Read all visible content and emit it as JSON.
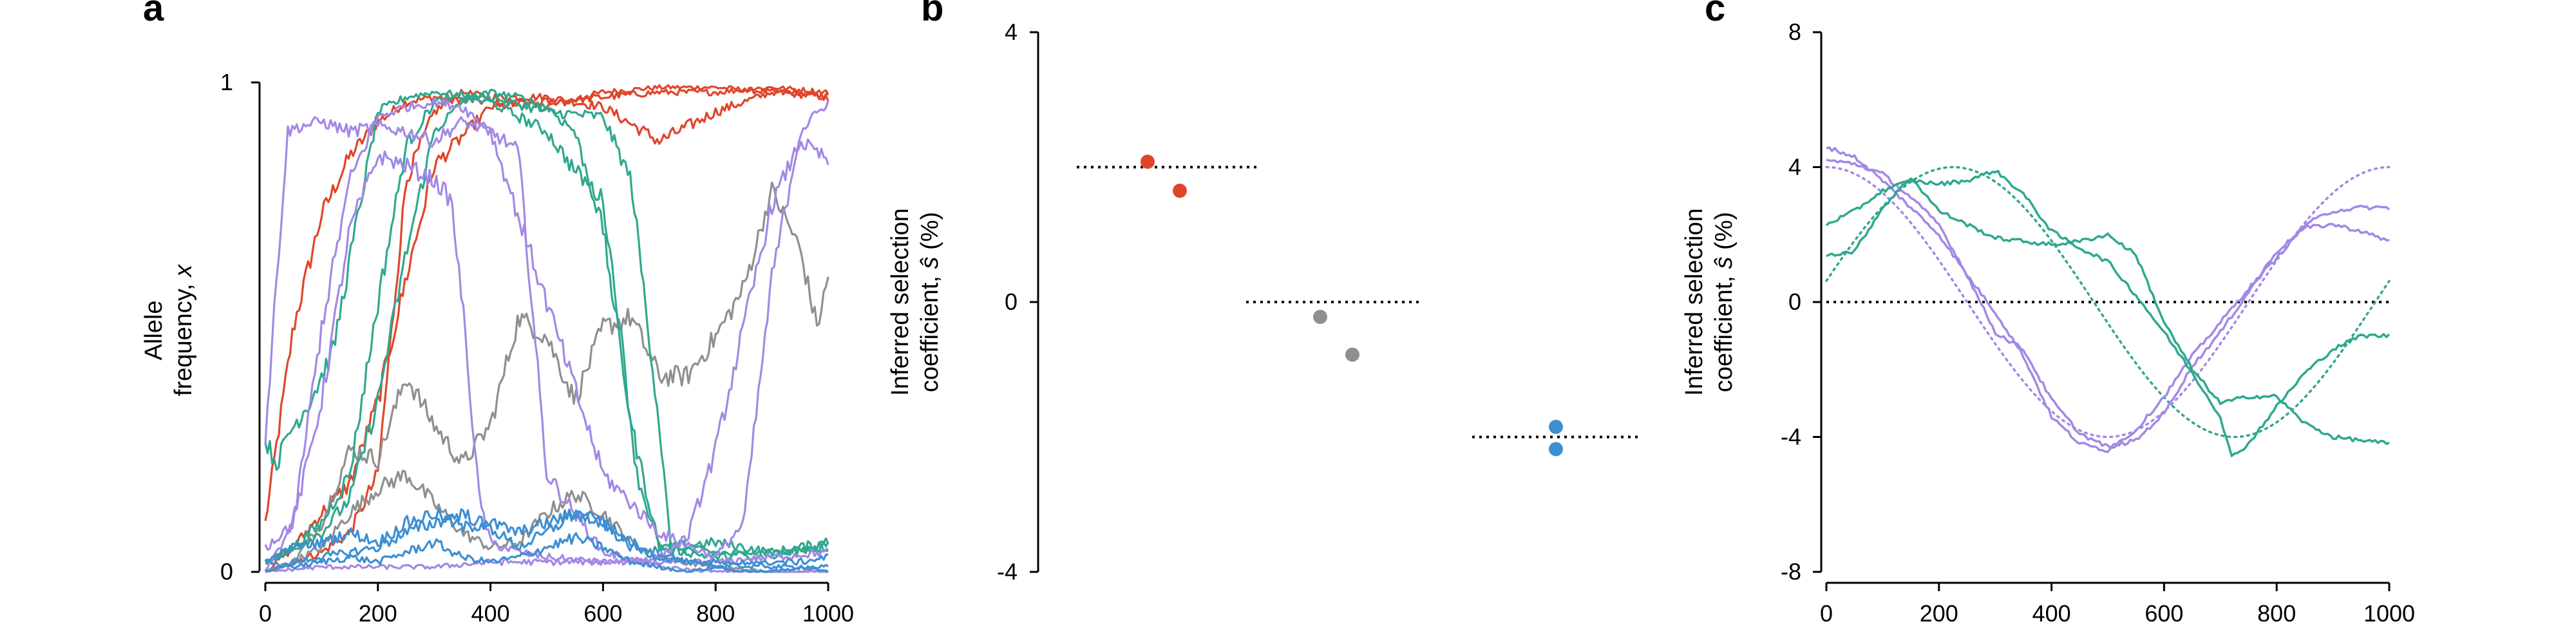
{
  "colors": {
    "red": "#e0452a",
    "gray": "#8f8f8f",
    "teal": "#2fa88f",
    "purple": "#a388e6",
    "blue": "#3d8fd2"
  },
  "chart_data": [
    {
      "panel": "a",
      "type": "line",
      "ylabel_line1": "Allele",
      "ylabel_line2": "frequency, ",
      "ylabel_symbol": "x",
      "xlim": [
        0,
        1000
      ],
      "ylim": [
        0,
        1
      ],
      "xticks": [
        0,
        200,
        400,
        600,
        800,
        1000
      ],
      "yticks": [
        0,
        1
      ],
      "grid": false,
      "legend": "none",
      "series": [
        {
          "color": "red",
          "x": [
            0,
            50,
            100,
            150,
            200,
            250,
            300,
            400,
            500,
            600,
            700,
            800,
            900,
            1000
          ],
          "y": [
            0.1,
            0.5,
            0.73,
            0.85,
            0.92,
            0.96,
            0.97,
            0.96,
            0.95,
            0.98,
            0.99,
            0.99,
            0.98,
            0.97
          ]
        },
        {
          "color": "red",
          "x": [
            0,
            50,
            100,
            150,
            200,
            250,
            300,
            350,
            400,
            500,
            600,
            700,
            800,
            900,
            950,
            1000
          ],
          "y": [
            0.0,
            0.02,
            0.04,
            0.08,
            0.2,
            0.8,
            0.94,
            0.98,
            0.97,
            0.97,
            0.95,
            0.88,
            0.94,
            0.98,
            0.98,
            0.97
          ]
        },
        {
          "color": "red",
          "x": [
            0,
            50,
            100,
            150,
            200,
            250,
            300,
            400,
            500,
            600,
            700,
            800,
            900,
            1000
          ],
          "y": [
            0.0,
            0.05,
            0.12,
            0.18,
            0.35,
            0.6,
            0.83,
            0.95,
            0.96,
            0.97,
            0.98,
            0.98,
            0.99,
            0.98
          ]
        },
        {
          "color": "gray",
          "x": [
            0,
            50,
            100,
            150,
            200,
            250,
            300,
            350,
            400,
            450,
            500,
            550,
            600,
            650,
            700,
            750,
            800,
            850,
            900,
            950,
            980,
            1000
          ],
          "y": [
            0.0,
            0.02,
            0.1,
            0.25,
            0.23,
            0.4,
            0.3,
            0.22,
            0.3,
            0.52,
            0.48,
            0.35,
            0.5,
            0.52,
            0.4,
            0.4,
            0.48,
            0.58,
            0.78,
            0.66,
            0.5,
            0.6
          ]
        },
        {
          "color": "gray",
          "x": [
            0,
            50,
            100,
            150,
            200,
            250,
            300,
            350,
            400,
            450,
            500,
            550,
            600,
            650,
            700,
            750,
            800,
            900,
            1000
          ],
          "y": [
            0.0,
            0.02,
            0.05,
            0.12,
            0.17,
            0.2,
            0.14,
            0.08,
            0.05,
            0.06,
            0.12,
            0.16,
            0.12,
            0.06,
            0.03,
            0.02,
            0.01,
            0.0,
            0.0
          ]
        },
        {
          "color": "teal",
          "x": [
            0,
            20,
            40,
            80,
            120,
            160,
            200,
            250,
            300,
            400,
            500,
            600,
            650,
            700,
            720,
            800,
            900,
            1000
          ],
          "y": [
            0.27,
            0.22,
            0.28,
            0.35,
            0.45,
            0.7,
            0.94,
            0.97,
            0.98,
            0.97,
            0.94,
            0.93,
            0.8,
            0.3,
            0.05,
            0.04,
            0.03,
            0.06
          ]
        },
        {
          "color": "teal",
          "x": [
            0,
            50,
            100,
            150,
            200,
            250,
            300,
            350,
            400,
            450,
            500,
            550,
            600,
            630,
            660,
            700,
            800,
            900,
            1000
          ],
          "y": [
            0.02,
            0.05,
            0.1,
            0.2,
            0.55,
            0.87,
            0.96,
            0.97,
            0.96,
            0.93,
            0.9,
            0.82,
            0.76,
            0.5,
            0.2,
            0.05,
            0.06,
            0.04,
            0.06
          ]
        },
        {
          "color": "teal",
          "x": [
            0,
            50,
            100,
            150,
            200,
            250,
            300,
            350,
            400,
            450,
            500,
            550,
            600,
            650,
            700,
            800,
            900,
            1000
          ],
          "y": [
            0.02,
            0.05,
            0.08,
            0.15,
            0.35,
            0.65,
            0.9,
            0.96,
            0.98,
            0.97,
            0.95,
            0.9,
            0.7,
            0.3,
            0.05,
            0.03,
            0.04,
            0.05
          ]
        },
        {
          "color": "purple",
          "x": [
            0,
            20,
            40,
            60,
            100,
            150,
            200,
            250,
            300,
            350,
            400,
            450,
            500,
            600,
            700,
            800,
            900,
            1000
          ],
          "y": [
            0.27,
            0.6,
            0.9,
            0.91,
            0.92,
            0.9,
            0.91,
            0.9,
            0.88,
            0.92,
            0.9,
            0.86,
            0.2,
            0.04,
            0.01,
            0.0,
            0.0,
            0.0
          ]
        },
        {
          "color": "purple",
          "x": [
            0,
            50,
            100,
            150,
            200,
            250,
            300,
            330,
            350,
            380,
            400,
            450,
            500,
            600,
            700,
            800,
            900,
            1000
          ],
          "y": [
            0.05,
            0.1,
            0.35,
            0.7,
            0.85,
            0.83,
            0.8,
            0.76,
            0.55,
            0.15,
            0.06,
            0.04,
            0.03,
            0.02,
            0.02,
            0.02,
            0.03,
            0.04
          ]
        },
        {
          "color": "purple",
          "x": [
            0,
            100,
            200,
            300,
            400,
            500,
            600,
            700,
            750,
            800,
            850,
            900,
            950,
            1000
          ],
          "y": [
            0.0,
            0.01,
            0.01,
            0.01,
            0.02,
            0.02,
            0.02,
            0.03,
            0.07,
            0.25,
            0.5,
            0.75,
            0.88,
            0.84
          ]
        },
        {
          "color": "purple",
          "x": [
            0,
            50,
            100,
            150,
            200,
            250,
            300,
            350,
            400,
            500,
            600,
            700,
            800,
            850,
            900,
            950,
            1000
          ],
          "y": [
            0.0,
            0.1,
            0.5,
            0.8,
            0.93,
            0.95,
            0.96,
            0.95,
            0.9,
            0.55,
            0.2,
            0.08,
            0.03,
            0.1,
            0.6,
            0.9,
            0.96
          ]
        },
        {
          "color": "blue",
          "x": [
            0,
            50,
            100,
            150,
            200,
            250,
            300,
            350,
            400,
            450,
            500,
            550,
            600,
            650,
            700,
            750,
            800,
            850,
            900,
            950,
            1000
          ],
          "y": [
            0.02,
            0.05,
            0.06,
            0.08,
            0.06,
            0.1,
            0.12,
            0.09,
            0.1,
            0.08,
            0.1,
            0.12,
            0.1,
            0.06,
            0.04,
            0.02,
            0.02,
            0.01,
            0.02,
            0.02,
            0.03
          ]
        },
        {
          "color": "blue",
          "x": [
            0,
            50,
            100,
            150,
            200,
            250,
            300,
            350,
            400,
            450,
            500,
            550,
            600,
            650,
            700,
            750,
            800,
            850,
            900,
            950,
            1000
          ],
          "y": [
            0.0,
            0.02,
            0.03,
            0.04,
            0.05,
            0.08,
            0.1,
            0.12,
            0.09,
            0.05,
            0.08,
            0.12,
            0.1,
            0.05,
            0.03,
            0.02,
            0.01,
            0.02,
            0.01,
            0.01,
            0.01
          ]
        },
        {
          "color": "blue",
          "x": [
            0,
            50,
            100,
            150,
            200,
            250,
            300,
            350,
            400,
            450,
            500,
            550,
            600,
            650,
            700,
            750,
            800,
            850,
            900,
            950,
            1000
          ],
          "y": [
            0.02,
            0.01,
            0.02,
            0.03,
            0.02,
            0.04,
            0.06,
            0.03,
            0.02,
            0.03,
            0.05,
            0.07,
            0.05,
            0.02,
            0.01,
            0.0,
            0.01,
            0.0,
            0.0,
            0.01,
            0.0
          ]
        }
      ]
    },
    {
      "panel": "b",
      "type": "scatter",
      "ylabel_line1": "Inferred selection",
      "ylabel_line2": "coefficient, ",
      "ylabel_symbol": "ŝ",
      "ylabel_suffix": " (%)",
      "ylim": [
        -4,
        4
      ],
      "yticks": [
        -4,
        0,
        4
      ],
      "grid": false,
      "legend": "none",
      "reference_lines": [
        {
          "value": 2,
          "color": "red",
          "group": 0
        },
        {
          "value": 0,
          "color": "gray",
          "group": 1
        },
        {
          "value": -2,
          "color": "blue",
          "group": 2
        }
      ],
      "points": [
        {
          "group": 0,
          "offset": -0.3,
          "value": 2.08,
          "color": "red"
        },
        {
          "group": 0,
          "offset": 0.2,
          "value": 1.65,
          "color": "red"
        },
        {
          "group": 1,
          "offset": -0.2,
          "value": -0.22,
          "color": "gray"
        },
        {
          "group": 1,
          "offset": 0.3,
          "value": -0.78,
          "color": "gray"
        },
        {
          "group": 2,
          "offset": 0.0,
          "value": -1.85,
          "color": "blue"
        },
        {
          "group": 2,
          "offset": 0.0,
          "value": -2.18,
          "color": "blue"
        }
      ]
    },
    {
      "panel": "c",
      "type": "line",
      "ylabel_line1": "Inferred selection",
      "ylabel_line2": "coefficient, ",
      "ylabel_symbol": "ŝ",
      "ylabel_suffix": " (%)",
      "xlim": [
        0,
        1000
      ],
      "ylim": [
        -8,
        8
      ],
      "xticks": [
        0,
        200,
        400,
        600,
        800,
        1000
      ],
      "yticks": [
        -8,
        -4,
        0,
        4,
        8
      ],
      "grid": false,
      "legend": "none",
      "zero_line": true,
      "true_curves": [
        {
          "color": "purple",
          "function": "4*cos(2*pi*t/1000)",
          "note": "dotted"
        },
        {
          "color": "teal",
          "function": "4*sin(2*pi*(t+25)/1000)",
          "note": "dotted"
        }
      ],
      "series": [
        {
          "color": "purple",
          "x": [
            0,
            50,
            100,
            150,
            200,
            250,
            300,
            350,
            400,
            450,
            500,
            550,
            600,
            650,
            700,
            750,
            800,
            850,
            900,
            950,
            1000
          ],
          "y": [
            4.6,
            4.3,
            3.6,
            2.8,
            2.0,
            0.8,
            -0.3,
            -1.6,
            -3.4,
            -4.2,
            -4.4,
            -3.8,
            -2.8,
            -1.6,
            -0.6,
            0.4,
            1.3,
            2.3,
            2.7,
            2.8,
            2.8
          ]
        },
        {
          "color": "purple",
          "x": [
            0,
            50,
            100,
            150,
            200,
            250,
            300,
            350,
            400,
            450,
            500,
            550,
            600,
            650,
            700,
            750,
            800,
            850,
            900,
            950,
            1000
          ],
          "y": [
            4.2,
            4.1,
            3.8,
            3.1,
            2.3,
            0.8,
            -0.9,
            -1.4,
            -2.9,
            -3.9,
            -4.3,
            -4.1,
            -3.3,
            -1.9,
            -0.9,
            0.3,
            1.5,
            2.2,
            2.3,
            2.1,
            1.8
          ]
        },
        {
          "color": "teal",
          "x": [
            0,
            50,
            100,
            150,
            200,
            250,
            300,
            350,
            400,
            450,
            500,
            550,
            600,
            650,
            700,
            720,
            750,
            800,
            850,
            900,
            950,
            1000
          ],
          "y": [
            2.3,
            2.7,
            3.3,
            3.6,
            3.5,
            3.6,
            3.9,
            3.2,
            2.1,
            1.6,
            1.2,
            0.2,
            -0.9,
            -2.1,
            -3.4,
            -4.6,
            -4.2,
            -3.1,
            -2.1,
            -1.4,
            -1.0,
            -1.0
          ]
        },
        {
          "color": "teal",
          "x": [
            0,
            50,
            100,
            150,
            200,
            250,
            300,
            350,
            400,
            450,
            500,
            550,
            600,
            650,
            700,
            750,
            800,
            850,
            900,
            950,
            1000
          ],
          "y": [
            1.4,
            1.5,
            2.8,
            3.7,
            2.7,
            2.3,
            1.9,
            1.8,
            1.7,
            1.8,
            2.0,
            1.4,
            -0.6,
            -2.0,
            -3.0,
            -2.8,
            -2.8,
            -3.6,
            -4.0,
            -4.1,
            -4.2
          ]
        }
      ]
    }
  ]
}
